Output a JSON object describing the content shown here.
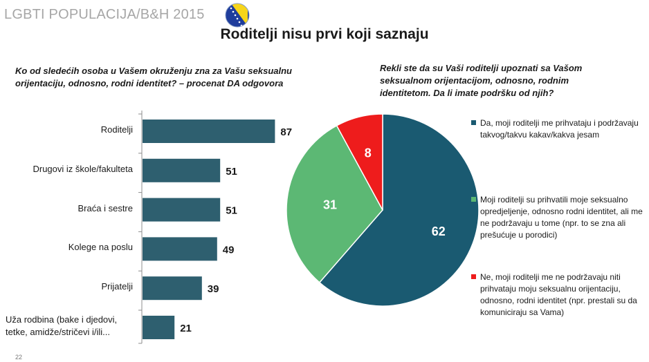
{
  "header": {
    "title": "LGBTI POPULACIJA/B&H 2015"
  },
  "slide_title": "Roditelji nisu prvi koji saznaju",
  "left_question": "Ko od sledećih osoba u Vašem okruženju zna za Vašu seksualnu orijentaciju, odnosno, rodni identitet? – procenat DA odgovora",
  "right_question": "Rekli ste da su Vaši roditelji upoznati sa Vašom seksualnom orijentacijom, odnosno, rodnim identitetom. Da li imate podršku od njih?",
  "page_number": "22",
  "colors": {
    "bar": "#2e5f6f",
    "pie_yes": "#1a5a71",
    "pie_partial": "#5cb874",
    "pie_no": "#ee1c1c"
  },
  "chart_data": [
    {
      "type": "bar",
      "orientation": "horizontal",
      "title": "",
      "categories": [
        "Roditelji",
        "Drugovi iz škole/fakulteta",
        "Braća i sestre",
        "Kolege na poslu",
        "Prijatelji",
        "Uža rodbina (bake i djedovi, tetke, amidže/stričevi i/ili..."
      ],
      "values": [
        87,
        51,
        51,
        49,
        39,
        21
      ],
      "data_labels": [
        "87",
        "51",
        "51",
        "49",
        "39",
        "21"
      ],
      "xlim": [
        0,
        100
      ]
    },
    {
      "type": "pie",
      "title": "",
      "labels": [
        "Da, moji roditelji me prihvataju i podržavaju takvog/takvu kakav/kakva jesam",
        "Moji roditelji su prihvatili moje seksualno opredjeljenje, odnosno rodni identitet, ali me ne podržavaju u tome (npr. to se zna ali prešućuje u porodici)",
        "Ne, moji roditelji me ne podržavaju niti prihvataju moju seksualnu orijentaciju, odnosno, rodni identitet (npr. prestali su da komuniciraju sa Vama)"
      ],
      "values": [
        62,
        31,
        8
      ],
      "data_labels": [
        "62",
        "31",
        "8"
      ],
      "legend": "right"
    }
  ]
}
